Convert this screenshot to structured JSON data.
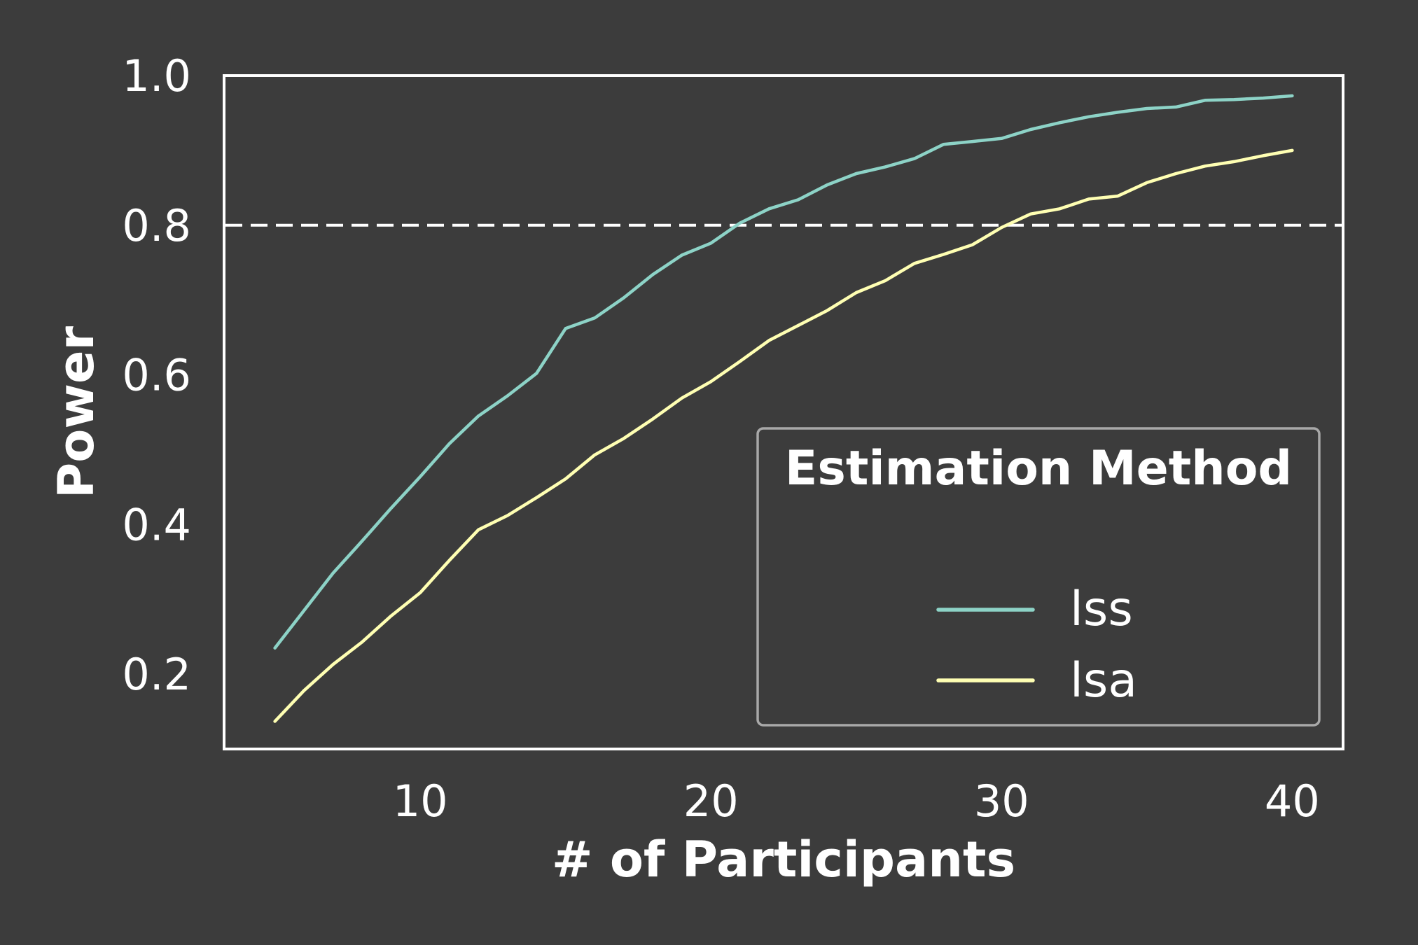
{
  "chart_data": {
    "type": "line",
    "title": "",
    "xlabel": "# of Participants",
    "ylabel": "Power",
    "xlim": [
      3.25,
      41.75
    ],
    "ylim": [
      0.1,
      1.0
    ],
    "xticks": [
      10,
      20,
      30,
      40
    ],
    "yticks": [
      0.2,
      0.4,
      0.6,
      0.8,
      1.0
    ],
    "xtick_labels": [
      "10",
      "20",
      "30",
      "40"
    ],
    "ytick_labels": [
      "0.2",
      "0.4",
      "0.6",
      "0.8",
      "1.0"
    ],
    "grid": false,
    "reference_line": {
      "y": 0.8,
      "style": "dashed",
      "color": "#ffffff"
    },
    "legend": {
      "title": "Estimation Method",
      "position": "lower-right"
    },
    "x": [
      5,
      6,
      7,
      8,
      9,
      10,
      11,
      12,
      13,
      14,
      15,
      16,
      17,
      18,
      19,
      20,
      21,
      22,
      23,
      24,
      25,
      26,
      27,
      28,
      29,
      30,
      31,
      32,
      33,
      34,
      35,
      36,
      37,
      38,
      39,
      40
    ],
    "series": [
      {
        "name": "lss",
        "color": "#8dd3c7",
        "values": [
          0.235,
          0.285,
          0.335,
          0.378,
          0.422,
          0.464,
          0.508,
          0.545,
          0.572,
          0.602,
          0.662,
          0.676,
          0.703,
          0.734,
          0.76,
          0.776,
          0.803,
          0.822,
          0.834,
          0.854,
          0.869,
          0.878,
          0.889,
          0.908,
          0.912,
          0.916,
          0.928,
          0.937,
          0.945,
          0.951,
          0.956,
          0.958,
          0.967,
          0.968,
          0.97,
          0.973
        ]
      },
      {
        "name": "lsa",
        "color": "#ffffb3",
        "values": [
          0.137,
          0.178,
          0.213,
          0.243,
          0.278,
          0.309,
          0.352,
          0.393,
          0.412,
          0.436,
          0.461,
          0.493,
          0.515,
          0.541,
          0.569,
          0.591,
          0.618,
          0.646,
          0.666,
          0.686,
          0.71,
          0.726,
          0.749,
          0.761,
          0.774,
          0.797,
          0.815,
          0.822,
          0.835,
          0.839,
          0.857,
          0.869,
          0.879,
          0.885,
          0.893,
          0.9
        ]
      }
    ]
  }
}
